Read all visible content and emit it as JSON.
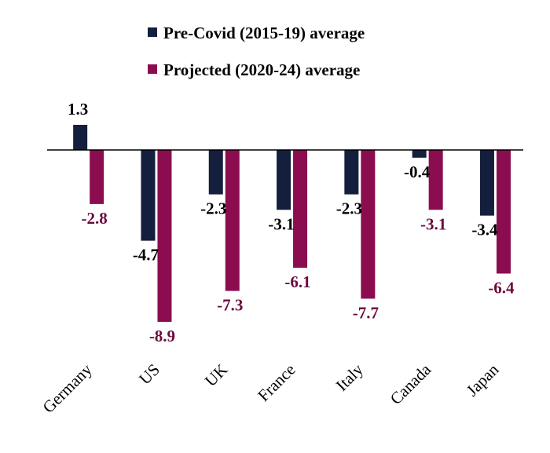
{
  "chart_data": {
    "type": "bar",
    "categories": [
      "Germany",
      "US",
      "UK",
      "France",
      "Italy",
      "Canada",
      "Japan"
    ],
    "series": [
      {
        "name": "Pre-Covid (2015-19) average",
        "color": "#141f3d",
        "values": [
          1.3,
          -4.7,
          -2.3,
          -3.1,
          -2.3,
          -0.4,
          -3.4
        ],
        "labels": [
          "1.3",
          "-4.7",
          "-2.3",
          "-3.1",
          "-2.3",
          "-0.4",
          "-3.4"
        ]
      },
      {
        "name": "Projected (2020-24) average",
        "color": "#8b0d4f",
        "values": [
          -2.8,
          -8.9,
          -7.3,
          -6.1,
          -7.7,
          -3.1,
          -6.4
        ],
        "labels": [
          "-2.8",
          "-8.9",
          "-7.3",
          "-6.1",
          "-7.7",
          "-3.1",
          "-6.4"
        ]
      }
    ],
    "label_colors": [
      "#000000",
      "#6b0b3e"
    ],
    "ylim": [
      -9.5,
      1.5
    ],
    "legend_position": "top-center",
    "grid": false,
    "axis_color": "#000000"
  }
}
